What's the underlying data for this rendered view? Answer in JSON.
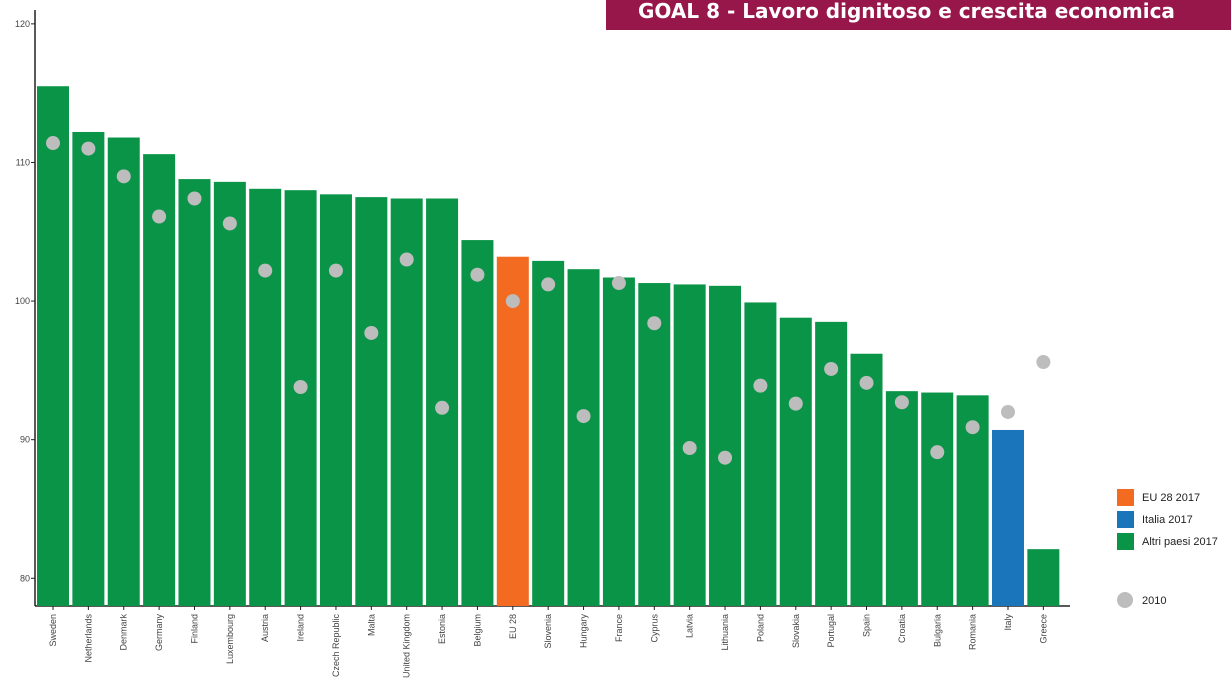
{
  "header": {
    "banner_text": "GOAL 8 - Lavoro dignitoso e crescita economica"
  },
  "colors": {
    "eu": "#f26b21",
    "italy": "#1b75bb",
    "other": "#0a9447",
    "dot_2010": "#bdbdbd",
    "banner": "#98174a"
  },
  "chart_data": {
    "type": "bar",
    "title": "",
    "xlabel": "",
    "ylabel": "",
    "ylim": [
      78,
      121
    ],
    "yticks": [
      80,
      90,
      100,
      110,
      120
    ],
    "grid": false,
    "legend_position": "right",
    "categories": [
      "Sweden",
      "Netherlands",
      "Denmark",
      "Germany",
      "Finland",
      "Luxembourg",
      "Austria",
      "Ireland",
      "Czech Republic",
      "Malta",
      "United Kingdom",
      "Estonia",
      "Belgium",
      "EU 28",
      "Slovenia",
      "Hungary",
      "France",
      "Cyprus",
      "Latvia",
      "Lithuania",
      "Poland",
      "Slovakia",
      "Portugal",
      "Spain",
      "Croatia",
      "Bulgaria",
      "Romania",
      "Italy",
      "Greece"
    ],
    "bar_groups": [
      "other",
      "other",
      "other",
      "other",
      "other",
      "other",
      "other",
      "other",
      "other",
      "other",
      "other",
      "other",
      "other",
      "eu",
      "other",
      "other",
      "other",
      "other",
      "other",
      "other",
      "other",
      "other",
      "other",
      "other",
      "other",
      "other",
      "other",
      "italy",
      "other"
    ],
    "series": [
      {
        "name": "2017",
        "values": [
          115.5,
          112.2,
          111.8,
          110.6,
          108.8,
          108.6,
          108.1,
          108.0,
          107.7,
          107.5,
          107.4,
          107.4,
          104.4,
          103.2,
          102.9,
          102.3,
          101.7,
          101.3,
          101.2,
          101.1,
          99.9,
          98.8,
          98.5,
          96.2,
          93.5,
          93.4,
          93.2,
          90.7,
          82.1
        ]
      },
      {
        "name": "2010",
        "values": [
          111.4,
          111.0,
          109.0,
          106.1,
          107.4,
          105.6,
          102.2,
          93.8,
          102.2,
          97.7,
          103.0,
          92.3,
          101.9,
          100.0,
          101.2,
          91.7,
          101.3,
          98.4,
          89.4,
          88.7,
          93.9,
          92.6,
          95.1,
          94.1,
          92.7,
          89.1,
          90.9,
          92.0,
          95.6
        ]
      }
    ],
    "legend": [
      {
        "label": "EU 28 2017",
        "color_key": "eu",
        "shape": "square"
      },
      {
        "label": "Italia 2017",
        "color_key": "italy",
        "shape": "square"
      },
      {
        "label": "Altri paesi 2017",
        "color_key": "other",
        "shape": "square"
      },
      {
        "label": "2010",
        "color_key": "dot_2010",
        "shape": "circle"
      }
    ]
  }
}
